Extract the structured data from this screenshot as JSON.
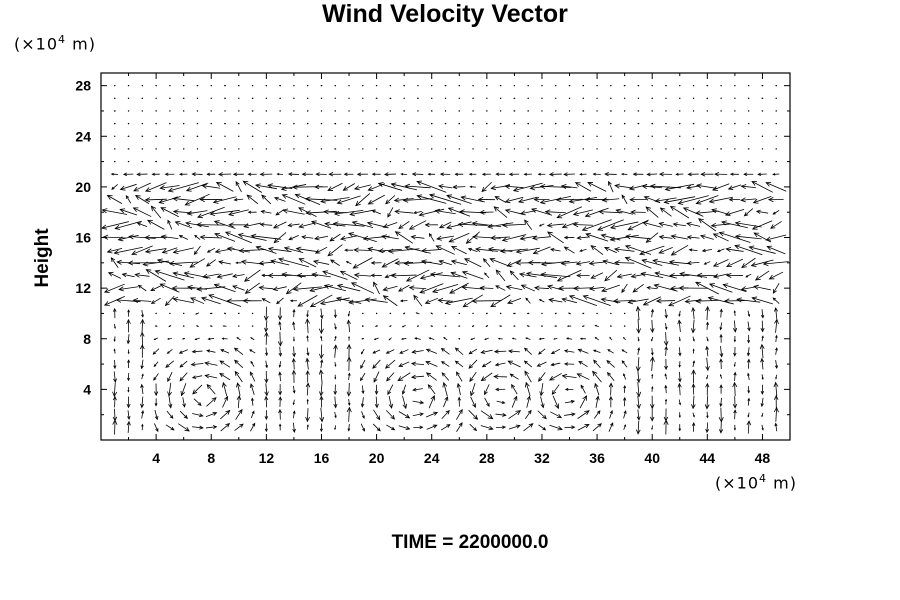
{
  "chart_data": {
    "type": "vector-field",
    "title": "Wind Velocity Vector",
    "xlabel": "",
    "ylabel": "Height",
    "x_unit_prefix": "(×10",
    "x_unit_exp": "4",
    "x_unit_suffix": " m)",
    "y_unit_prefix": "(×10",
    "y_unit_exp": "4",
    "y_unit_suffix": " m)",
    "xlim": [
      0,
      50
    ],
    "ylim": [
      0,
      29
    ],
    "x_ticks": [
      4,
      8,
      12,
      16,
      20,
      24,
      28,
      32,
      36,
      40,
      44,
      48
    ],
    "y_ticks": [
      4,
      8,
      12,
      16,
      20,
      24,
      28
    ],
    "grid": false,
    "annotation": "TIME = 2200000.0",
    "features": {
      "upper_flow_band": [
        11,
        20
      ],
      "lower_eddies_x": [
        7.5,
        23,
        29,
        34
      ],
      "lower_eddy_top": 8.5
    }
  }
}
